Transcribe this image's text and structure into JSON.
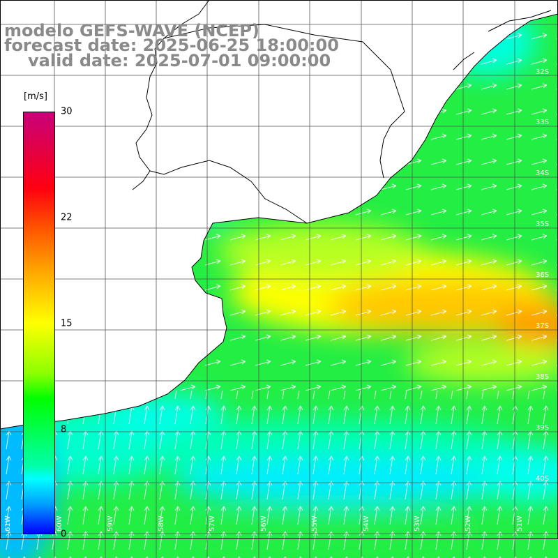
{
  "title": {
    "model": "modelo GEFS-WAVE (NCEP)",
    "forecast_date": "forecast date: 2025-06-25 18:00:00",
    "valid_date": "valid date: 2025-07-01 09:00:00"
  },
  "colorbar": {
    "unit": "[m/s]",
    "ticks": [
      {
        "label": "30",
        "value": 30
      },
      {
        "label": "22",
        "value": 22
      },
      {
        "label": "15",
        "value": 15
      },
      {
        "label": "8",
        "value": 8
      },
      {
        "label": "0",
        "value": 0
      }
    ],
    "min": 0,
    "max": 30
  },
  "grid": {
    "lat_labels": [
      "32S",
      "33S",
      "34S",
      "35S",
      "36S",
      "37S",
      "38S",
      "39S",
      "40S"
    ],
    "lon_labels": [
      "61W",
      "60W",
      "59W",
      "58W",
      "57W",
      "56W",
      "55W",
      "54W",
      "53W",
      "52W",
      "51W"
    ]
  },
  "colors": {
    "title_gray": "#8a8a8a",
    "land": "#ffffff",
    "gridline": "#555555",
    "arrow": "#ffffff",
    "coast": "#000000"
  }
}
